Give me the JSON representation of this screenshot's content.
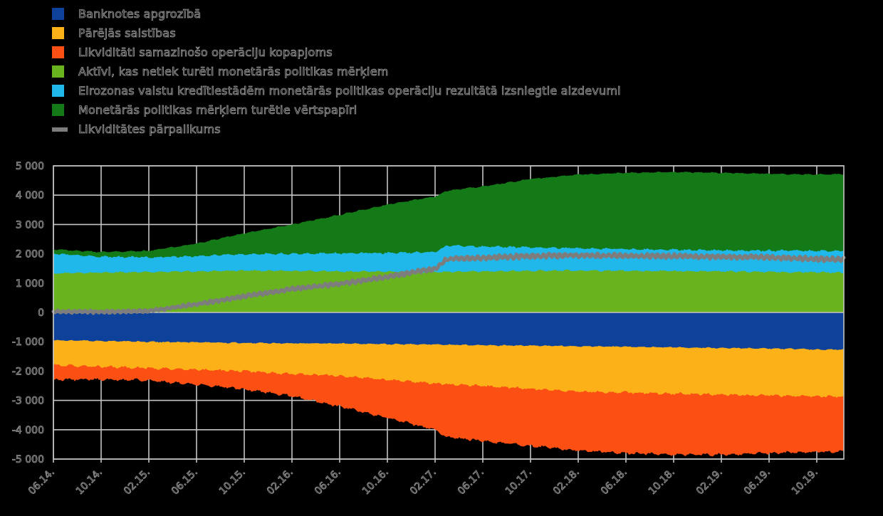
{
  "colors": {
    "background": "#000000",
    "grid": "#c4c4c4",
    "zero_line": "#c4c4c4",
    "text_outline": "#9a9a9a"
  },
  "chart_data": {
    "type": "area",
    "subtype": "stacked-area-with-line",
    "title": "",
    "xlabel": "",
    "ylabel": "",
    "ylim": [
      -5000,
      5000
    ],
    "grid": true,
    "legend_position": "top-left",
    "y_tick_values": [
      5000,
      4000,
      3000,
      2000,
      1000,
      0,
      -1000,
      -2000,
      -3000,
      -4000,
      -5000
    ],
    "y_tick_labels": [
      "5 000",
      "4 000",
      "3 000",
      "2 000",
      "1 000",
      "0",
      "-1 000",
      "-2 000",
      "-3 000",
      "-4 000",
      "-5 000"
    ],
    "x_tick_labels": [
      "06.14.",
      "10.14.",
      "02.15.",
      "06.15.",
      "10.15.",
      "02.16.",
      "06.16.",
      "10.16.",
      "02.17.",
      "06.17.",
      "10.17.",
      "02.18.",
      "06.18.",
      "10.18.",
      "02.19.",
      "06.19.",
      "10.19."
    ],
    "x_tick_months": [
      0,
      4,
      8,
      12,
      16,
      20,
      24,
      28,
      32,
      36,
      40,
      44,
      48,
      52,
      56,
      60,
      64
    ],
    "x_sample_months": [
      0,
      4,
      8,
      12,
      16,
      20,
      24,
      28,
      32,
      33,
      36,
      40,
      44,
      48,
      52,
      56,
      60,
      64,
      66
    ],
    "series": [
      {
        "id": "banknotes",
        "label": "Banknotes apgrozībā",
        "color": "#0e4199",
        "kind": "area",
        "stack": "neg",
        "values": [
          -950,
          -970,
          -1000,
          -1020,
          -1040,
          -1050,
          -1060,
          -1080,
          -1090,
          -1100,
          -1120,
          -1130,
          -1150,
          -1170,
          -1190,
          -1210,
          -1230,
          -1260,
          -1270
        ]
      },
      {
        "id": "other-liabilities",
        "label": "Pārējās saistības",
        "color": "#fbb117",
        "kind": "area",
        "stack": "neg",
        "values": [
          -850,
          -880,
          -900,
          -930,
          -960,
          -1050,
          -1100,
          -1220,
          -1330,
          -1350,
          -1380,
          -1470,
          -1540,
          -1560,
          -1580,
          -1590,
          -1600,
          -1600,
          -1600
        ]
      },
      {
        "id": "liquidity-absorbing",
        "label": "Likviditāti samazinošo operāciju kopapjoms",
        "color": "#fb4f14",
        "kind": "area",
        "stack": "neg",
        "values": [
          -500,
          -430,
          -420,
          -500,
          -620,
          -750,
          -1040,
          -1300,
          -1580,
          -1800,
          -1880,
          -1950,
          -2010,
          -2070,
          -2080,
          -2050,
          -1970,
          -1890,
          -1880
        ]
      },
      {
        "id": "non-mp-assets",
        "label": "Aktīvi, kas netiek turēti monetārās politikas mērķiem",
        "color": "#69b41e",
        "kind": "area",
        "stack": "pos",
        "values": [
          1330,
          1360,
          1380,
          1400,
          1430,
          1420,
          1400,
          1390,
          1380,
          1380,
          1400,
          1420,
          1430,
          1420,
          1410,
          1400,
          1380,
          1370,
          1360
        ]
      },
      {
        "id": "mp-lending",
        "label": "Eirozonas valstu kredītiestādēm monetārās politikas operāciju rezultātā izsniegtie aizdevumi",
        "color": "#20b7ea",
        "kind": "area",
        "stack": "pos",
        "values": [
          670,
          540,
          500,
          520,
          560,
          580,
          620,
          640,
          670,
          900,
          850,
          800,
          760,
          740,
          730,
          720,
          730,
          730,
          740
        ]
      },
      {
        "id": "mp-securities",
        "label": "Monetārās politikas mērķiem turētie vērtspapīri",
        "color": "#147a17",
        "kind": "area",
        "stack": "pos",
        "values": [
          150,
          160,
          220,
          430,
          710,
          1000,
          1310,
          1650,
          1900,
          1870,
          2050,
          2330,
          2510,
          2600,
          2650,
          2640,
          2620,
          2600,
          2620
        ]
      },
      {
        "id": "excess-liquidity",
        "label": "Likviditātes pārpalikums",
        "color": "#7d7d7d",
        "kind": "line",
        "values": [
          30,
          20,
          50,
          280,
          550,
          800,
          980,
          1220,
          1500,
          1820,
          1870,
          1920,
          1950,
          1930,
          1920,
          1900,
          1880,
          1820,
          1800
        ]
      }
    ]
  }
}
